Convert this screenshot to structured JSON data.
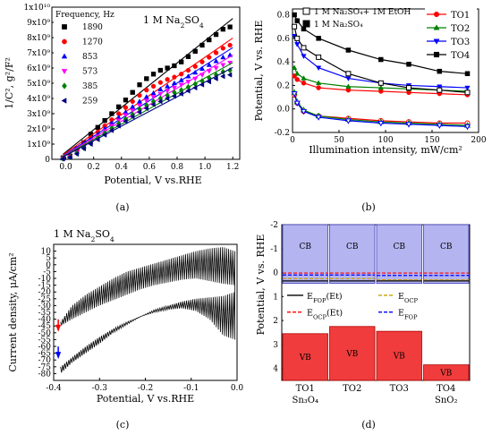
{
  "chart_data": [
    {
      "type": "scatter",
      "panel_label": "(a)",
      "annotation": "1 M Na2SO4",
      "xlabel": "Potential, V vs.RHE",
      "ylabel": "1/C², g²/F²",
      "xlim": [
        -0.1,
        1.25
      ],
      "ylim": [
        0,
        10000000000
      ],
      "x_ticks": [
        "0.0",
        "0.2",
        "0.4",
        "0.6",
        "0.8",
        "1.0",
        "1.2"
      ],
      "x_tick_values": [
        0.0,
        0.2,
        0.4,
        0.6,
        0.8,
        1.0,
        1.2
      ],
      "y_ticks": [
        "0",
        "1x10⁹",
        "2x10⁹",
        "3x10⁹",
        "4x10⁹",
        "5x10⁹",
        "6x10⁹",
        "7x10⁹",
        "8x10⁹",
        "9x10⁹",
        "1x10¹⁰"
      ],
      "y_tick_values": [
        0,
        1000000000,
        2000000000,
        3000000000,
        4000000000,
        5000000000,
        6000000000,
        7000000000,
        8000000000,
        9000000000,
        10000000000
      ],
      "legend": {
        "title": "Frequency, Hz",
        "placement": "top-left"
      },
      "x": [
        -0.02,
        0.03,
        0.08,
        0.13,
        0.18,
        0.23,
        0.28,
        0.33,
        0.38,
        0.43,
        0.48,
        0.53,
        0.58,
        0.63,
        0.68,
        0.73,
        0.78,
        0.83,
        0.88,
        0.93,
        0.98,
        1.03,
        1.08,
        1.13,
        1.18
      ],
      "series": [
        {
          "name": "1890",
          "color": "#000000",
          "marker": "square",
          "values": [
            0.1,
            0.22,
            0.7,
            1.1,
            1.65,
            2.1,
            2.55,
            3.0,
            3.45,
            3.9,
            4.4,
            4.9,
            5.3,
            5.6,
            5.85,
            6.0,
            6.15,
            6.4,
            6.75,
            7.1,
            7.5,
            7.85,
            8.2,
            8.55,
            8.7
          ]
        },
        {
          "name": "1270",
          "color": "#ff0000",
          "marker": "circle",
          "values": [
            0.08,
            0.2,
            0.55,
            0.95,
            1.4,
            1.8,
            2.2,
            2.6,
            3.0,
            3.4,
            3.8,
            4.2,
            4.55,
            4.8,
            5.05,
            5.25,
            5.4,
            5.6,
            5.85,
            6.1,
            6.4,
            6.7,
            7.0,
            7.3,
            7.5
          ]
        },
        {
          "name": "853",
          "color": "#0000ff",
          "marker": "triangle-up",
          "values": [
            0.06,
            0.18,
            0.5,
            0.85,
            1.25,
            1.65,
            2.0,
            2.4,
            2.75,
            3.1,
            3.45,
            3.8,
            4.1,
            4.35,
            4.6,
            4.8,
            5.0,
            5.2,
            5.45,
            5.7,
            5.95,
            6.2,
            6.45,
            6.7,
            6.85
          ]
        },
        {
          "name": "573",
          "color": "#ff00ff",
          "marker": "triangle-down",
          "values": [
            0.05,
            0.16,
            0.45,
            0.8,
            1.15,
            1.5,
            1.85,
            2.2,
            2.55,
            2.9,
            3.2,
            3.55,
            3.85,
            4.1,
            4.3,
            4.5,
            4.7,
            4.9,
            5.1,
            5.3,
            5.55,
            5.8,
            6.0,
            6.2,
            6.35
          ]
        },
        {
          "name": "385",
          "color": "#008000",
          "marker": "diamond",
          "values": [
            0.04,
            0.14,
            0.4,
            0.75,
            1.05,
            1.4,
            1.7,
            2.05,
            2.35,
            2.65,
            2.95,
            3.3,
            3.55,
            3.8,
            4.0,
            4.2,
            4.4,
            4.55,
            4.75,
            4.95,
            5.15,
            5.35,
            5.55,
            5.75,
            5.85
          ]
        },
        {
          "name": "259",
          "color": "#000080",
          "marker": "triangle-left",
          "values": [
            0.03,
            0.12,
            0.35,
            0.7,
            1.0,
            1.3,
            1.6,
            1.9,
            2.2,
            2.5,
            2.8,
            3.1,
            3.35,
            3.6,
            3.8,
            4.0,
            4.15,
            4.3,
            4.5,
            4.7,
            4.9,
            5.1,
            5.3,
            5.45,
            5.55
          ]
        }
      ],
      "y_units_factor": 1000000000
    },
    {
      "type": "line",
      "panel_label": "(b)",
      "xlabel": "Illumination intensity, mW/cm²",
      "ylabel": "Potential, V vs. RHE",
      "xlim": [
        0,
        200
      ],
      "ylim": [
        -0.2,
        0.85
      ],
      "x_ticks": [
        "0",
        "50",
        "100",
        "150",
        "200"
      ],
      "x_tick_values": [
        0,
        50,
        100,
        150,
        200
      ],
      "y_ticks": [
        "-0.2",
        "0.0",
        "0.2",
        "0.4",
        "0.6",
        "0.8"
      ],
      "y_tick_values": [
        -0.2,
        0.0,
        0.2,
        0.4,
        0.6,
        0.8
      ],
      "legend_left": [
        "1 M Na₂SO₄+ 1M EtOH",
        "1 M Na₂SO₄"
      ],
      "legend_right": [
        "TO1",
        "TO2",
        "TO3",
        "TO4"
      ],
      "x": [
        2,
        5,
        12,
        28,
        60,
        95,
        125,
        158,
        188
      ],
      "series": [
        {
          "name": "TO1",
          "color": "#ff0000",
          "marker": "circle",
          "values": [
            0.28,
            0.25,
            0.22,
            0.18,
            0.16,
            0.15,
            0.14,
            0.13,
            0.12
          ]
        },
        {
          "name": "TO2",
          "color": "#008000",
          "marker": "triangle-up",
          "values": [
            0.35,
            0.3,
            0.26,
            0.22,
            0.19,
            0.18,
            0.17,
            0.16,
            0.15
          ]
        },
        {
          "name": "TO3",
          "color": "#0000ff",
          "marker": "triangle-down",
          "values": [
            0.62,
            0.55,
            0.45,
            0.35,
            0.26,
            0.22,
            0.2,
            0.19,
            0.18
          ]
        },
        {
          "name": "TO4",
          "color": "#000000",
          "marker": "square",
          "values": [
            0.8,
            0.75,
            0.68,
            0.6,
            0.5,
            0.42,
            0.38,
            0.32,
            0.3
          ]
        },
        {
          "name": "TO1 EtOH",
          "color": "#ff0000",
          "marker": "circle-open",
          "values": [
            0.12,
            0.05,
            -0.02,
            -0.06,
            -0.08,
            -0.1,
            -0.11,
            -0.12,
            -0.12
          ]
        },
        {
          "name": "TO2 EtOH",
          "color": "#008000",
          "marker": "triangle-up-open",
          "values": [
            0.14,
            0.06,
            -0.01,
            -0.06,
            -0.09,
            -0.11,
            -0.12,
            -0.13,
            -0.14
          ]
        },
        {
          "name": "TO3 EtOH",
          "color": "#0000ff",
          "marker": "triangle-down-open",
          "values": [
            0.13,
            0.05,
            -0.02,
            -0.07,
            -0.1,
            -0.12,
            -0.13,
            -0.14,
            -0.15
          ]
        },
        {
          "name": "TO4 EtOH",
          "color": "#000000",
          "marker": "square-open",
          "values": [
            0.7,
            0.6,
            0.52,
            0.44,
            0.3,
            0.22,
            0.18,
            0.16,
            0.14
          ]
        }
      ]
    },
    {
      "type": "line",
      "panel_label": "(c)",
      "annotation": "1 M Na2SO4",
      "xlabel": "Potential, V vs.RHE",
      "ylabel": "Current density, μA/cm²",
      "xlim": [
        -0.4,
        0.0
      ],
      "ylim": [
        -85,
        15
      ],
      "x_ticks": [
        "-0.4",
        "-0.3",
        "-0.2",
        "-0.1",
        "0.0"
      ],
      "x_tick_values": [
        -0.4,
        -0.3,
        -0.2,
        -0.1,
        0.0
      ],
      "y_ticks": [
        "-80",
        "-75",
        "-70",
        "-65",
        "-60",
        "-55",
        "-50",
        "-45",
        "-40",
        "-35",
        "-30",
        "-25",
        "-20",
        "-15",
        "-10",
        "-5",
        "0",
        "5",
        "10"
      ],
      "y_tick_values": [
        -80,
        -75,
        -70,
        -65,
        -60,
        -55,
        -50,
        -45,
        -40,
        -35,
        -30,
        -25,
        -20,
        -15,
        -10,
        -5,
        0,
        5,
        10
      ],
      "upper_envelope_x": [
        -0.385,
        -0.36,
        -0.33,
        -0.3,
        -0.27,
        -0.24,
        -0.21,
        -0.18,
        -0.15,
        -0.12,
        -0.09,
        -0.06,
        -0.03,
        -0.005
      ],
      "upper_envelope_y": [
        -42,
        -30,
        -22,
        -16,
        -10,
        -5,
        -2,
        1,
        4,
        7,
        10,
        12,
        13,
        10
      ],
      "lower_envelope_x": [
        -0.385,
        -0.36,
        -0.33,
        -0.3,
        -0.27,
        -0.24,
        -0.21,
        -0.18,
        -0.15,
        -0.12,
        -0.09,
        -0.06,
        -0.03,
        -0.005
      ],
      "lower_envelope_y": [
        -80,
        -72,
        -65,
        -58,
        -50,
        -44,
        -38,
        -33,
        -30,
        -27,
        -25,
        -24,
        -23,
        -20
      ],
      "inner_upper_y": [
        -45,
        -40,
        -35,
        -30,
        -26,
        -22,
        -18,
        -15,
        -13,
        -11,
        -10,
        -12,
        -14,
        -15
      ],
      "inner_lower_y": [
        -75,
        -68,
        -60,
        -53,
        -47,
        -42,
        -38,
        -35,
        -33,
        -32,
        -34,
        -40,
        -52,
        -55
      ],
      "arrows": [
        {
          "color": "#ff0000",
          "x": -0.39,
          "y": -48
        },
        {
          "color": "#0000ff",
          "x": -0.39,
          "y": -68
        }
      ]
    },
    {
      "type": "bar",
      "panel_label": "(d)",
      "ylabel": "Potential, V vs. RHE",
      "ylim": [
        4.5,
        -2
      ],
      "y_ticks": [
        "-2",
        "-1",
        "0",
        "1",
        "2",
        "3",
        "4"
      ],
      "y_tick_values": [
        -2,
        -1,
        0,
        1,
        2,
        3,
        4
      ],
      "categories": [
        "TO1",
        "TO2",
        "TO3",
        "TO4"
      ],
      "category_sublabels": [
        "Sn₃O₄",
        "",
        "",
        "SnO₂"
      ],
      "cb_label": "CB",
      "vb_label": "VB",
      "cb_edge": [
        0.45,
        0.45,
        0.45,
        0.45
      ],
      "vb_edge": [
        2.55,
        2.25,
        2.45,
        3.85
      ],
      "cb_top": -2.0,
      "vb_bottom": 4.5,
      "cb_color": "#b4b4f0",
      "vb_color": "#f03c3c",
      "levels": [
        {
          "name": "E_FOP(Et)",
          "label_main": "E",
          "label_sub": "FOP",
          "label_suffix": "(Et)",
          "color": "#000000",
          "style": "solid",
          "values": [
            0.35,
            0.35,
            0.35,
            0.35
          ]
        },
        {
          "name": "E_OCP",
          "label_main": "E",
          "label_sub": "OCP",
          "label_suffix": "",
          "color": "#c8a000",
          "style": "dashed",
          "values": [
            0.25,
            0.25,
            0.3,
            0.3
          ]
        },
        {
          "name": "E_OCP(Et)",
          "label_main": "E",
          "label_sub": "OCP",
          "label_suffix": "(Et)",
          "color": "#ff0000",
          "style": "dashed",
          "values": [
            0.02,
            0.02,
            0.02,
            0.02
          ]
        },
        {
          "name": "E_FOP",
          "label_main": "E",
          "label_sub": "FOP",
          "label_suffix": "",
          "color": "#0000ff",
          "style": "dashed",
          "values": [
            0.1,
            0.1,
            0.12,
            0.12
          ]
        }
      ]
    }
  ]
}
